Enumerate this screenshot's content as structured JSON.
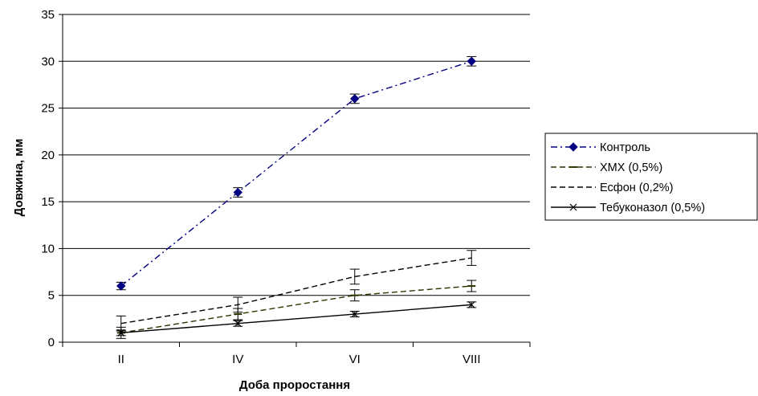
{
  "chart_data": {
    "type": "line",
    "xlabel": "Доба проростання",
    "ylabel": "Довжина, мм",
    "categories": [
      "II",
      "IV",
      "VI",
      "VIII"
    ],
    "ylim": [
      0,
      35
    ],
    "yticks": [
      "0",
      "5",
      "10",
      "15",
      "20",
      "25",
      "30",
      "35"
    ],
    "grid": "horizontal",
    "legend_position": "right",
    "series": [
      {
        "name": "Контроль",
        "values": [
          6,
          16,
          26,
          30
        ],
        "errors": [
          0.4,
          0.5,
          0.5,
          0.5
        ],
        "color": "#000080",
        "line_style": "dash-dot",
        "marker": "diamond"
      },
      {
        "name": "ХМХ (0,5%)",
        "values": [
          1,
          3,
          5,
          6
        ],
        "errors": [
          0.6,
          0.6,
          0.6,
          0.6
        ],
        "color": "#333300",
        "line_style": "dashed",
        "marker": "dash"
      },
      {
        "name": "Есфон (0,2%)",
        "values": [
          2,
          4,
          7,
          9
        ],
        "errors": [
          0.8,
          0.8,
          0.8,
          0.8
        ],
        "color": "#000000",
        "line_style": "dashed",
        "marker": "none"
      },
      {
        "name": "Тебуконазол (0,5%)",
        "values": [
          1,
          2,
          3,
          4
        ],
        "errors": [
          0.3,
          0.3,
          0.3,
          0.3
        ],
        "color": "#000000",
        "line_style": "solid",
        "marker": "x"
      }
    ]
  }
}
